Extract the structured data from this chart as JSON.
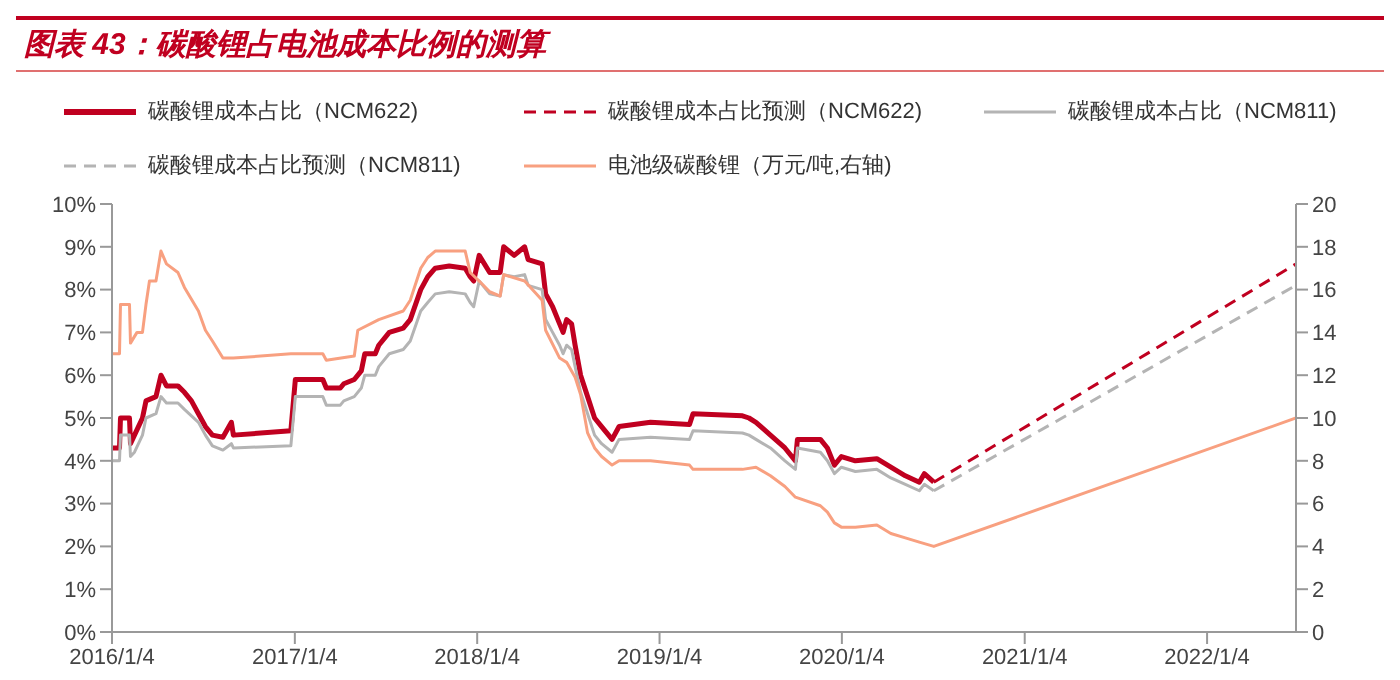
{
  "chart_data": {
    "type": "line",
    "title": "图表 43：碳酸锂占电池成本比例的测算",
    "legend": "top",
    "marker": "none",
    "xlim": [
      "2016-01-04",
      "2022-07-01"
    ],
    "xticks": [
      {
        "value": "2016-01-04",
        "label": "2016/1/4"
      },
      {
        "value": "2017-01-04",
        "label": "2017/1/4"
      },
      {
        "value": "2018-01-04",
        "label": "2018/1/4"
      },
      {
        "value": "2019-01-04",
        "label": "2019/1/4"
      },
      {
        "value": "2020-01-04",
        "label": "2020/1/4"
      },
      {
        "value": "2021-01-04",
        "label": "2021/1/4"
      },
      {
        "value": "2022-01-04",
        "label": "2022/1/4"
      }
    ],
    "ylim": [
      0,
      10
    ],
    "yticks": [
      {
        "value": 0,
        "label": "0%"
      },
      {
        "value": 1,
        "label": "1%"
      },
      {
        "value": 2,
        "label": "2%"
      },
      {
        "value": 3,
        "label": "3%"
      },
      {
        "value": 4,
        "label": "4%"
      },
      {
        "value": 5,
        "label": "5%"
      },
      {
        "value": 6,
        "label": "6%"
      },
      {
        "value": 7,
        "label": "7%"
      },
      {
        "value": 8,
        "label": "8%"
      },
      {
        "value": 9,
        "label": "9%"
      },
      {
        "value": 10,
        "label": "10%"
      }
    ],
    "y2lim": [
      0,
      20
    ],
    "y2ticks": [
      0,
      2,
      4,
      6,
      8,
      10,
      12,
      14,
      16,
      18,
      20
    ],
    "series": [
      {
        "name": "碳酸锂成本占比（NCM622)",
        "color": "#c00020",
        "line_style": "solid",
        "x": [
          "2016-01-04",
          "2016-01-19",
          "2016-01-21",
          "2016-02-08",
          "2016-02-10",
          "2016-02-18",
          "2016-03-05",
          "2016-03-12",
          "2016-04-01",
          "2016-04-11",
          "2016-04-22",
          "2016-05-15",
          "2016-05-28",
          "2016-06-11",
          "2016-06-25",
          "2016-07-09",
          "2016-07-23",
          "2016-08-13",
          "2016-08-30",
          "2016-09-03",
          "2016-12-27",
          "2017-01-05",
          "2017-03-01",
          "2017-03-08",
          "2017-04-05",
          "2017-04-12",
          "2017-05-03",
          "2017-05-17",
          "2017-05-24",
          "2017-06-14",
          "2017-06-21",
          "2017-07-12",
          "2017-08-09",
          "2017-08-23",
          "2017-09-13",
          "2017-09-27",
          "2017-10-12",
          "2017-11-09",
          "2017-12-11",
          "2017-12-21",
          "2017-12-28",
          "2018-01-08",
          "2018-01-29",
          "2018-02-19",
          "2018-02-26",
          "2018-03-19",
          "2018-04-09",
          "2018-04-16",
          "2018-05-14",
          "2018-05-21",
          "2018-06-04",
          "2018-06-18",
          "2018-06-25",
          "2018-07-02",
          "2018-07-12",
          "2018-07-19",
          "2018-07-30",
          "2018-08-13",
          "2018-08-27",
          "2018-09-10",
          "2018-10-01",
          "2018-10-15",
          "2018-12-17",
          "2019-03-05",
          "2019-03-12",
          "2019-06-19",
          "2019-07-02",
          "2019-07-16",
          "2019-08-14",
          "2019-09-12",
          "2019-10-03",
          "2019-10-07",
          "2019-11-22",
          "2019-12-06",
          "2019-12-20",
          "2020-01-03",
          "2020-01-31",
          "2020-03-14",
          "2020-04-11",
          "2020-05-10",
          "2020-06-07",
          "2020-06-17",
          "2020-07-06"
        ],
        "values": [
          4.3,
          4.3,
          5.0,
          5.0,
          4.4,
          4.6,
          5.0,
          5.4,
          5.5,
          6.0,
          5.75,
          5.75,
          5.6,
          5.4,
          5.1,
          4.8,
          4.6,
          4.55,
          4.9,
          4.6,
          4.7,
          5.9,
          5.9,
          5.7,
          5.7,
          5.8,
          5.9,
          6.1,
          6.5,
          6.5,
          6.7,
          7.0,
          7.1,
          7.3,
          8.0,
          8.3,
          8.5,
          8.55,
          8.5,
          8.3,
          8.2,
          8.8,
          8.4,
          8.4,
          9.0,
          8.8,
          9.0,
          8.7,
          8.6,
          7.9,
          7.6,
          7.2,
          7.0,
          7.3,
          7.2,
          6.7,
          6.0,
          5.5,
          5.0,
          4.8,
          4.5,
          4.8,
          4.9,
          4.85,
          5.1,
          5.05,
          5.0,
          4.9,
          4.6,
          4.3,
          4.0,
          4.5,
          4.5,
          4.3,
          3.9,
          4.1,
          4.0,
          4.05,
          3.85,
          3.65,
          3.5,
          3.7,
          3.5
        ]
      },
      {
        "name": "碳酸锂成本占比预测（NCM622)",
        "color": "#c00020",
        "line_style": "dashed",
        "x": [
          "2020-07-06",
          "2022-07-01"
        ],
        "values": [
          3.5,
          8.6
        ]
      },
      {
        "name": "碳酸锂成本占比（NCM811)",
        "color": "#b4b4b4",
        "line_style": "solid",
        "x": [
          "2016-01-04",
          "2016-01-19",
          "2016-01-21",
          "2016-02-08",
          "2016-02-10",
          "2016-02-18",
          "2016-03-05",
          "2016-03-12",
          "2016-04-01",
          "2016-04-11",
          "2016-04-22",
          "2016-05-15",
          "2016-05-28",
          "2016-06-11",
          "2016-06-25",
          "2016-07-09",
          "2016-07-23",
          "2016-08-13",
          "2016-08-30",
          "2016-09-03",
          "2016-12-27",
          "2017-01-05",
          "2017-03-01",
          "2017-03-08",
          "2017-04-05",
          "2017-04-12",
          "2017-05-03",
          "2017-05-17",
          "2017-05-24",
          "2017-06-14",
          "2017-06-21",
          "2017-07-12",
          "2017-08-09",
          "2017-08-23",
          "2017-09-13",
          "2017-09-27",
          "2017-10-12",
          "2017-11-09",
          "2017-12-11",
          "2017-12-21",
          "2017-12-28",
          "2018-01-08",
          "2018-01-29",
          "2018-02-19",
          "2018-02-26",
          "2018-03-19",
          "2018-04-09",
          "2018-04-16",
          "2018-05-14",
          "2018-05-21",
          "2018-06-04",
          "2018-06-18",
          "2018-06-25",
          "2018-07-02",
          "2018-07-12",
          "2018-07-19",
          "2018-07-30",
          "2018-08-13",
          "2018-08-27",
          "2018-09-10",
          "2018-10-01",
          "2018-10-15",
          "2018-12-17",
          "2019-03-05",
          "2019-03-12",
          "2019-06-19",
          "2019-07-02",
          "2019-07-16",
          "2019-08-14",
          "2019-09-12",
          "2019-10-03",
          "2019-10-07",
          "2019-11-22",
          "2019-12-06",
          "2019-12-20",
          "2020-01-03",
          "2020-01-31",
          "2020-03-14",
          "2020-04-11",
          "2020-05-10",
          "2020-06-07",
          "2020-06-17",
          "2020-07-06"
        ],
        "values": [
          4.0,
          4.0,
          4.6,
          4.6,
          4.1,
          4.2,
          4.6,
          5.0,
          5.1,
          5.5,
          5.35,
          5.35,
          5.2,
          5.05,
          4.9,
          4.6,
          4.35,
          4.25,
          4.4,
          4.3,
          4.35,
          5.5,
          5.5,
          5.3,
          5.3,
          5.4,
          5.5,
          5.7,
          6.0,
          6.0,
          6.2,
          6.5,
          6.6,
          6.8,
          7.5,
          7.7,
          7.9,
          7.95,
          7.9,
          7.7,
          7.6,
          8.2,
          7.9,
          7.85,
          8.35,
          8.3,
          8.35,
          8.1,
          8.0,
          7.3,
          7.0,
          6.7,
          6.5,
          6.7,
          6.6,
          6.2,
          5.6,
          5.1,
          4.6,
          4.4,
          4.2,
          4.5,
          4.55,
          4.5,
          4.7,
          4.65,
          4.6,
          4.5,
          4.3,
          4.0,
          3.8,
          4.3,
          4.2,
          4.0,
          3.7,
          3.85,
          3.75,
          3.8,
          3.6,
          3.45,
          3.3,
          3.45,
          3.3
        ]
      },
      {
        "name": "碳酸锂成本占比预测（NCM811)",
        "color": "#b4b4b4",
        "line_style": "dashed",
        "x": [
          "2020-07-06",
          "2022-07-01"
        ],
        "values": [
          3.3,
          8.1
        ]
      },
      {
        "name": "电池级碳酸锂（万元/吨,右轴)",
        "color": "#f8a080",
        "line_style": "solid",
        "axis": "y2",
        "x": [
          "2016-01-04",
          "2016-01-19",
          "2016-01-21",
          "2016-02-08",
          "2016-02-10",
          "2016-02-23",
          "2016-03-05",
          "2016-03-12",
          "2016-03-19",
          "2016-04-01",
          "2016-04-11",
          "2016-04-22",
          "2016-05-15",
          "2016-05-28",
          "2016-06-25",
          "2016-07-09",
          "2016-07-23",
          "2016-08-13",
          "2016-09-03",
          "2016-12-27",
          "2017-03-01",
          "2017-03-08",
          "2017-05-03",
          "2017-05-10",
          "2017-06-21",
          "2017-08-09",
          "2017-08-23",
          "2017-09-13",
          "2017-09-27",
          "2017-10-12",
          "2017-12-11",
          "2017-12-21",
          "2018-01-08",
          "2018-01-29",
          "2018-02-19",
          "2018-02-26",
          "2018-04-09",
          "2018-05-14",
          "2018-05-21",
          "2018-06-18",
          "2018-07-02",
          "2018-07-19",
          "2018-07-30",
          "2018-08-13",
          "2018-08-27",
          "2018-09-10",
          "2018-10-01",
          "2018-10-15",
          "2018-12-17",
          "2019-03-05",
          "2019-03-12",
          "2019-06-19",
          "2019-07-16",
          "2019-08-14",
          "2019-09-12",
          "2019-10-03",
          "2019-11-22",
          "2019-12-06",
          "2019-12-20",
          "2020-01-03",
          "2020-01-31",
          "2020-03-14",
          "2020-04-11",
          "2020-05-10",
          "2020-06-07",
          "2020-07-06",
          "2022-07-01"
        ],
        "values": [
          13.0,
          13.0,
          15.3,
          15.3,
          13.5,
          14.0,
          14.0,
          15.3,
          16.4,
          16.4,
          17.8,
          17.2,
          16.8,
          16.1,
          15.0,
          14.1,
          13.6,
          12.8,
          12.8,
          13.0,
          13.0,
          12.7,
          12.9,
          14.1,
          14.6,
          15.0,
          15.5,
          17.0,
          17.5,
          17.8,
          17.8,
          16.8,
          16.4,
          15.9,
          15.7,
          16.7,
          16.4,
          15.5,
          14.1,
          12.8,
          12.6,
          11.9,
          11.1,
          9.3,
          8.6,
          8.2,
          7.8,
          8.0,
          8.0,
          7.8,
          7.6,
          7.6,
          7.7,
          7.3,
          6.8,
          6.3,
          5.9,
          5.6,
          5.1,
          4.9,
          4.9,
          5.0,
          4.6,
          4.4,
          4.2,
          4.0,
          10.0
        ]
      }
    ]
  }
}
